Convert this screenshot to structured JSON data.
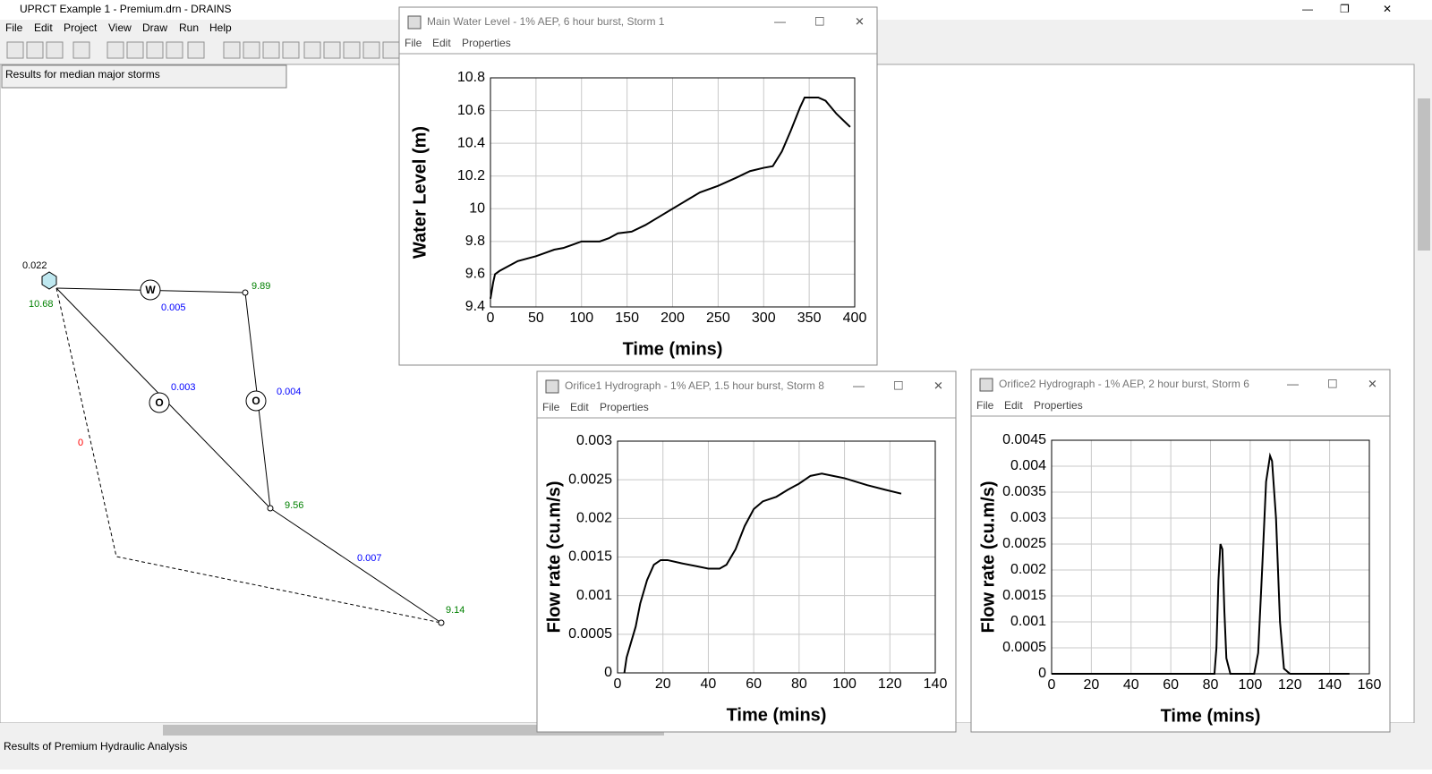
{
  "app": {
    "title": "UPRCT Example 1 - Premium.drn - DRAINS",
    "menu": [
      "File",
      "Edit",
      "Project",
      "View",
      "Draw",
      "Run",
      "Help"
    ],
    "info_box": "Results for median major storms",
    "status": "Results of Premium Hydraulic Analysis"
  },
  "network": {
    "structures": [
      "W",
      "O",
      "O"
    ],
    "labels": [
      "0.022",
      "10.68",
      "9.89",
      "0.005",
      "0.003",
      "0.004",
      "0",
      "9.56",
      "0.007",
      "9.14"
    ]
  },
  "windows": [
    {
      "title": "Main Water Level  - 1% AEP, 6 hour burst, Storm 1",
      "menu": [
        "File",
        "Edit",
        "Properties"
      ]
    },
    {
      "title": "Orifice1 Hydrograph - 1% AEP, 1.5 hour burst, Storm 8",
      "menu": [
        "File",
        "Edit",
        "Properties"
      ]
    },
    {
      "title": "Orifice2 Hydrograph - 1% AEP, 2 hour burst, Storm 6",
      "menu": [
        "File",
        "Edit",
        "Properties"
      ]
    }
  ],
  "chart_data": [
    {
      "type": "line",
      "x_label": "Time (mins)",
      "y_label": "Water Level (m)",
      "color": "#000000",
      "grid": true,
      "x": [
        0,
        3,
        5,
        10,
        20,
        30,
        50,
        60,
        70,
        80,
        90,
        100,
        120,
        130,
        140,
        155,
        170,
        185,
        200,
        215,
        230,
        250,
        270,
        285,
        300,
        310,
        320,
        330,
        340,
        345,
        360,
        368,
        380,
        395
      ],
      "values": [
        9.45,
        9.55,
        9.6,
        9.62,
        9.65,
        9.68,
        9.71,
        9.73,
        9.75,
        9.76,
        9.78,
        9.8,
        9.8,
        9.82,
        9.85,
        9.86,
        9.9,
        9.95,
        10.0,
        10.05,
        10.1,
        10.14,
        10.19,
        10.23,
        10.25,
        10.26,
        10.35,
        10.48,
        10.62,
        10.68,
        10.68,
        10.66,
        10.58,
        10.5
      ],
      "xlim": [
        0,
        400
      ],
      "xticks": [
        0,
        50,
        100,
        150,
        200,
        250,
        300,
        350,
        400
      ],
      "ylim": [
        9.4,
        10.8
      ],
      "yticks": [
        9.4,
        9.6,
        9.8,
        10,
        10.2,
        10.4,
        10.6,
        10.8
      ]
    },
    {
      "type": "line",
      "x_label": "Time (mins)",
      "y_label": "Flow rate (cu.m/s)",
      "color": "#000000",
      "grid": true,
      "x": [
        3,
        4,
        6,
        8,
        10,
        13,
        16,
        19,
        22,
        28,
        35,
        40,
        45,
        48,
        52,
        56,
        60,
        64,
        70,
        75,
        80,
        85,
        90,
        95,
        100,
        110,
        118,
        125
      ],
      "values": [
        0,
        0.0002,
        0.0004,
        0.0006,
        0.0009,
        0.0012,
        0.0014,
        0.00146,
        0.00146,
        0.00142,
        0.00138,
        0.00135,
        0.00135,
        0.0014,
        0.0016,
        0.0019,
        0.00212,
        0.00222,
        0.00228,
        0.00237,
        0.00245,
        0.00255,
        0.00258,
        0.00255,
        0.00252,
        0.00243,
        0.00237,
        0.00232
      ],
      "xlim": [
        0,
        140
      ],
      "xticks": [
        0,
        20,
        40,
        60,
        80,
        100,
        120,
        140
      ],
      "ylim": [
        0,
        0.003
      ],
      "yticks": [
        0,
        0.0005,
        0.001,
        0.0015,
        0.002,
        0.0025,
        0.003
      ]
    },
    {
      "type": "line",
      "x_label": "Time (mins)",
      "y_label": "Flow rate (cu.m/s)",
      "color": "#000000",
      "grid": true,
      "x": [
        0,
        80,
        82,
        83,
        84,
        85,
        86,
        87,
        88,
        90,
        102,
        104,
        106,
        108,
        110,
        111,
        113,
        115,
        117,
        120,
        150
      ],
      "values": [
        0,
        0,
        0,
        0.0005,
        0.0018,
        0.0025,
        0.0024,
        0.0012,
        0.0003,
        0,
        0,
        0.0004,
        0.002,
        0.0037,
        0.0042,
        0.0041,
        0.003,
        0.001,
        0.0001,
        0,
        0
      ],
      "xlim": [
        0,
        160
      ],
      "xticks": [
        0,
        20,
        40,
        60,
        80,
        100,
        120,
        140,
        160
      ],
      "ylim": [
        0,
        0.0045
      ],
      "yticks": [
        0,
        0.0005,
        0.001,
        0.0015,
        0.002,
        0.0025,
        0.003,
        0.0035,
        0.004,
        0.0045
      ]
    }
  ]
}
